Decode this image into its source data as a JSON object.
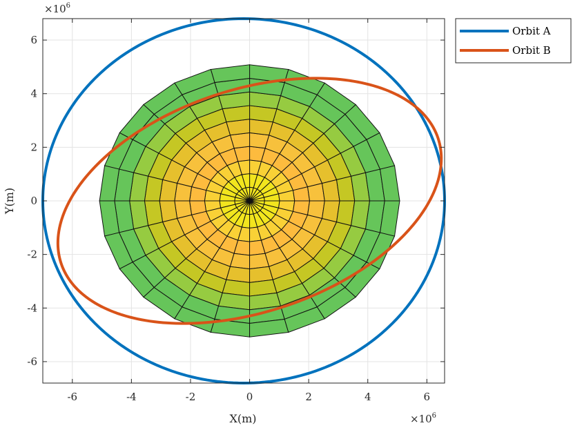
{
  "chart_data": {
    "type": "line",
    "xlabel": "X(m)",
    "ylabel": "Y(m)",
    "x_multiplier": {
      "base": "×10",
      "exponent": "6"
    },
    "y_multiplier": {
      "base": "×10",
      "exponent": "6"
    },
    "xlim": [
      -7.0,
      6.6
    ],
    "ylim": [
      -6.8,
      6.8
    ],
    "x_ticks": [
      -6,
      -4,
      -2,
      0,
      2,
      4,
      6
    ],
    "y_ticks": [
      -6,
      -4,
      -2,
      0,
      2,
      4,
      6
    ],
    "x_tick_labels": [
      "-6",
      "-4",
      "-2",
      "0",
      "2",
      "4",
      "6"
    ],
    "y_tick_labels": [
      "-6",
      "-4",
      "-2",
      "0",
      "2",
      "4",
      "6"
    ],
    "grid": true,
    "legend_position": "outside top-right",
    "series": [
      {
        "name": "Orbit A",
        "color": "#0072BD",
        "shape": "ellipse",
        "center": [
          -0.2,
          0.0
        ],
        "semi_axes": [
          6.8,
          6.8
        ],
        "rotation_deg": 0
      },
      {
        "name": "Orbit B",
        "color": "#D95319",
        "shape": "ellipse",
        "center": [
          0.0,
          0.0
        ],
        "semi_axes": [
          6.8,
          4.1
        ],
        "rotation_deg": 22
      }
    ],
    "surface": {
      "shape": "polar-mesh",
      "radius": 5.08,
      "angular_divisions": 24,
      "radial_divisions": 10,
      "colormap": [
        "#f2e51e",
        "#f9d136",
        "#fdbb3e",
        "#f7c13c",
        "#e6c02d",
        "#c5c724",
        "#96cb41",
        "#66c55a"
      ]
    }
  }
}
